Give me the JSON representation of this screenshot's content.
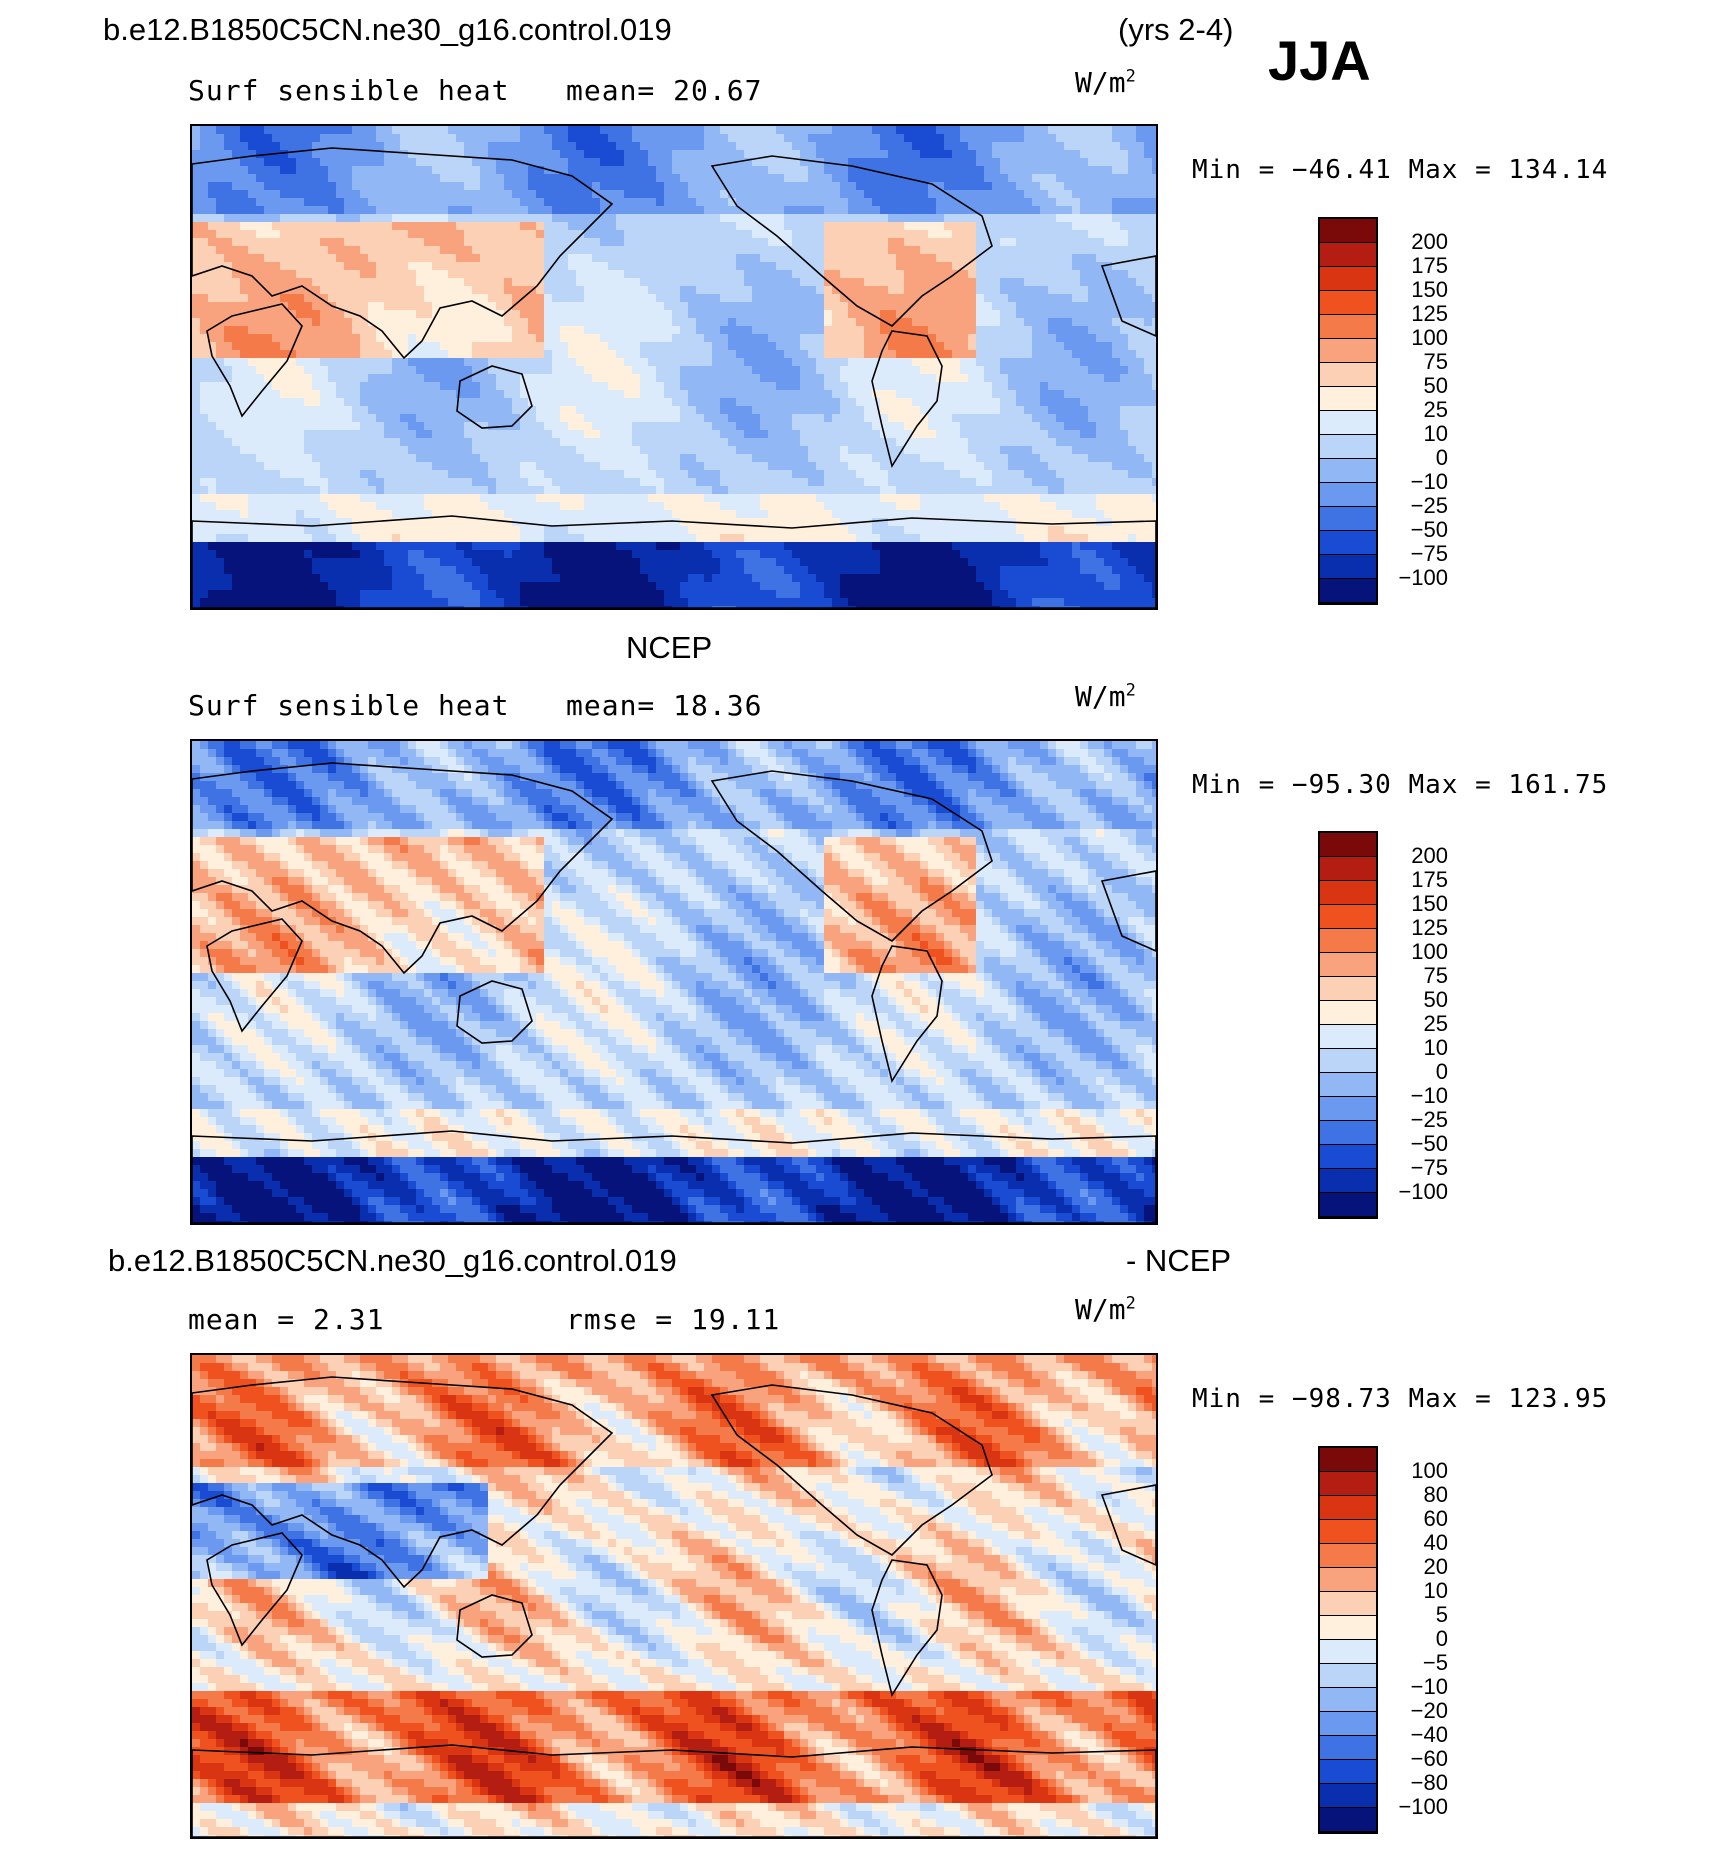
{
  "header": {
    "case_name": "b.e12.B1850C5CN.ne30_g16.control.019",
    "years": "(yrs 2-4)",
    "season": "JJA"
  },
  "panels": [
    {
      "title": "",
      "label": "Surf sensible heat",
      "stat": "mean=   20.67",
      "units": "W/m",
      "units_sup": "2",
      "minmax": "Min = −46.41  Max = 134.14",
      "levels": [
        "200",
        "175",
        "150",
        "125",
        "100",
        "75",
        "50",
        "25",
        "10",
        "0",
        "−10",
        "−25",
        "−50",
        "−75",
        "−100"
      ],
      "colors": [
        "#7a0a0a",
        "#b31d12",
        "#d93512",
        "#f0521f",
        "#f57a4a",
        "#f9a37e",
        "#fcd0b4",
        "#fff0de",
        "#dcebfb",
        "#bad5f7",
        "#91b8f4",
        "#6a99ef",
        "#3f73e3",
        "#1a4cd3",
        "#0a2fae",
        "#05137a"
      ],
      "variant": 0
    },
    {
      "title": "NCEP",
      "label": "Surf sensible heat",
      "stat": "mean=   18.36",
      "units": "W/m",
      "units_sup": "2",
      "minmax": "Min = −95.30  Max = 161.75",
      "levels": [
        "200",
        "175",
        "150",
        "125",
        "100",
        "75",
        "50",
        "25",
        "10",
        "0",
        "−10",
        "−25",
        "−50",
        "−75",
        "−100"
      ],
      "colors": [
        "#7a0a0a",
        "#b31d12",
        "#d93512",
        "#f0521f",
        "#f57a4a",
        "#f9a37e",
        "#fcd0b4",
        "#fff0de",
        "#dcebfb",
        "#bad5f7",
        "#91b8f4",
        "#6a99ef",
        "#3f73e3",
        "#1a4cd3",
        "#0a2fae",
        "#05137a"
      ],
      "variant": 1
    },
    {
      "title_left": "b.e12.B1850C5CN.ne30_g16.control.019",
      "title_right": "- NCEP",
      "label": "mean =    2.31",
      "stat": "rmse =   19.11",
      "units": "W/m",
      "units_sup": "2",
      "minmax": "Min = −98.73  Max = 123.95",
      "levels": [
        "100",
        "80",
        "60",
        "40",
        "20",
        "10",
        "5",
        "0",
        "−5",
        "−10",
        "−20",
        "−40",
        "−60",
        "−80",
        "−100"
      ],
      "colors": [
        "#7a0a0a",
        "#b31d12",
        "#d93512",
        "#f0521f",
        "#f57a4a",
        "#f9a37e",
        "#fcd0b4",
        "#fff0de",
        "#dcebfb",
        "#bad5f7",
        "#91b8f4",
        "#6a99ef",
        "#3f73e3",
        "#1a4cd3",
        "#0a2fae",
        "#05137a"
      ],
      "variant": 2
    }
  ]
}
